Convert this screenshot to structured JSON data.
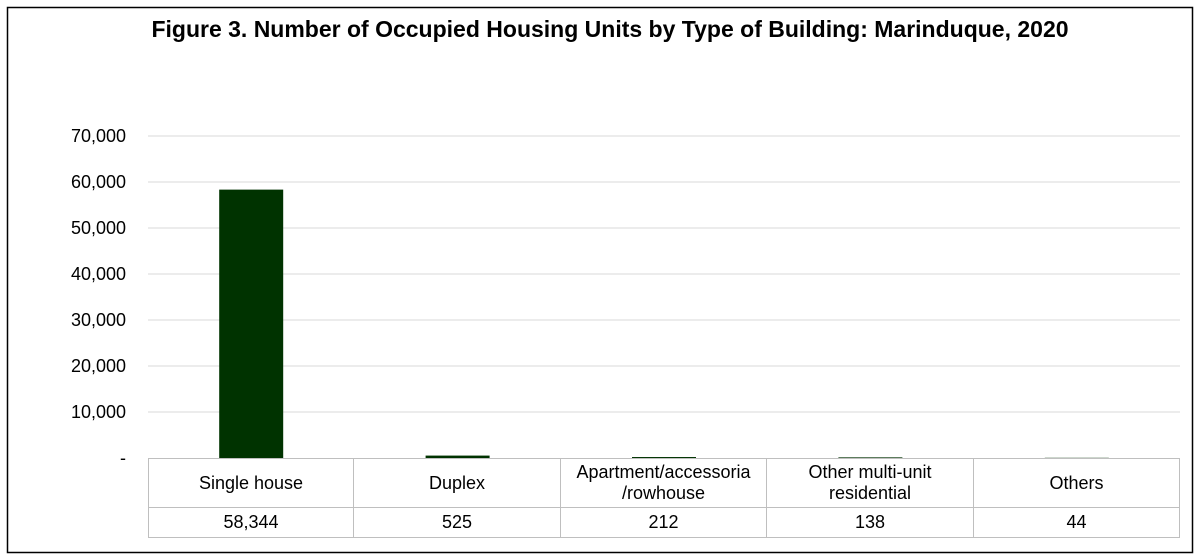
{
  "chart_data": {
    "type": "bar",
    "title": "Figure 3. Number of Occupied Housing Units by Type of Building: Marinduque, 2020",
    "categories": [
      "Single house",
      "Duplex",
      "Apartment/accessoria/rowhouse",
      "Other multi-unit residential",
      "Others"
    ],
    "values": [
      58344,
      525,
      212,
      138,
      44
    ],
    "value_labels": [
      "58,344",
      "525",
      "212",
      "138",
      "44"
    ],
    "color": "#003300",
    "ylim": [
      0,
      70000
    ],
    "yticks": [
      {
        "value": 0,
        "label": "-"
      },
      {
        "value": 10000,
        "label": "10,000"
      },
      {
        "value": 20000,
        "label": "20,000"
      },
      {
        "value": 30000,
        "label": "30,000"
      },
      {
        "value": 40000,
        "label": "40,000"
      },
      {
        "value": 50000,
        "label": "50,000"
      },
      {
        "value": 60000,
        "label": "60,000"
      },
      {
        "value": 70000,
        "label": "70,000"
      }
    ],
    "grid": true
  }
}
